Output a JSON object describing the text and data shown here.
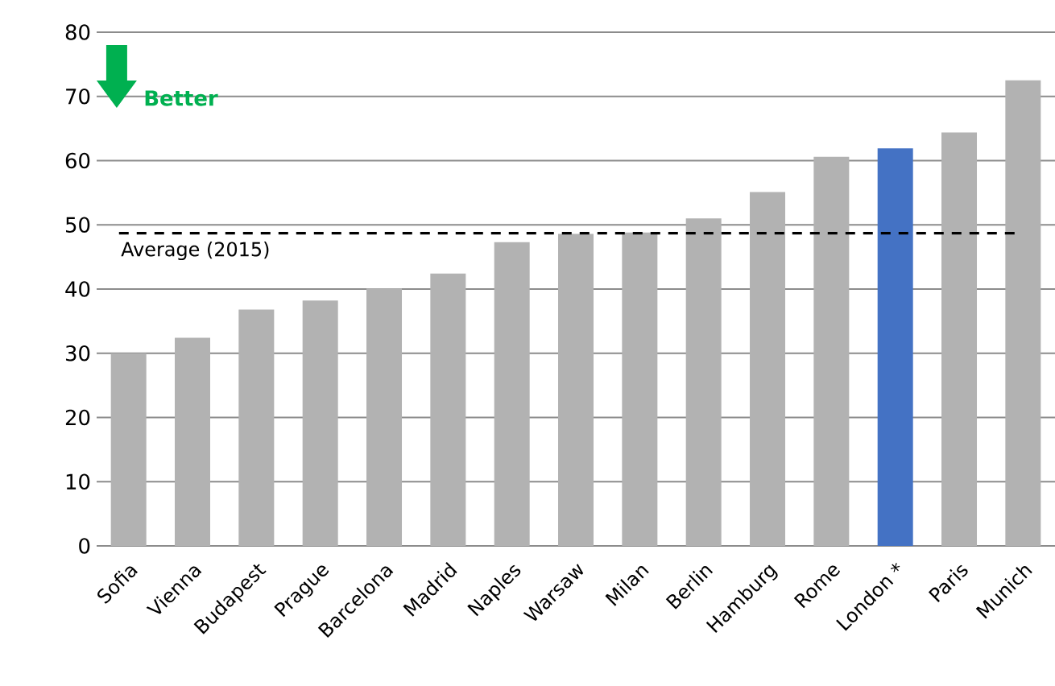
{
  "chart_data": {
    "type": "bar",
    "categories": [
      "Sofia",
      "Vienna",
      "Budapest",
      "Prague",
      "Barcelona",
      "Madrid",
      "Naples",
      "Warsaw",
      "Milan",
      "Berlin",
      "Hamburg",
      "Rome",
      "London *",
      "Paris",
      "Munich"
    ],
    "values": [
      30,
      32.4,
      36.8,
      38.2,
      40.1,
      42.4,
      47.3,
      48.6,
      48.8,
      51.0,
      55.1,
      60.6,
      61.9,
      64.4,
      72.5
    ],
    "colors": [
      "#b2b2b2",
      "#b2b2b2",
      "#b2b2b2",
      "#b2b2b2",
      "#b2b2b2",
      "#b2b2b2",
      "#b2b2b2",
      "#b2b2b2",
      "#b2b2b2",
      "#b2b2b2",
      "#b2b2b2",
      "#b2b2b2",
      "#4472c4",
      "#b2b2b2",
      "#b2b2b2"
    ],
    "ylim": [
      0,
      80
    ],
    "yticks": [
      0,
      10,
      20,
      30,
      40,
      50,
      60,
      70,
      80
    ],
    "grid": "y",
    "ref_lines": [
      {
        "axis": "y",
        "value": 48.7,
        "label": "Average (2015)",
        "color": "#000000",
        "line_style": "dashed"
      }
    ],
    "annotations": [
      "Better"
    ]
  }
}
